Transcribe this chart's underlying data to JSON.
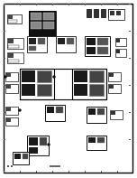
{
  "bg_color": "#ffffff",
  "fig_width": 1.52,
  "fig_height": 1.97,
  "dpi": 100,
  "lc": "#111111",
  "gray1": "#333333",
  "gray2": "#555555",
  "gray3": "#888888",
  "gray4": "#aaaaaa"
}
